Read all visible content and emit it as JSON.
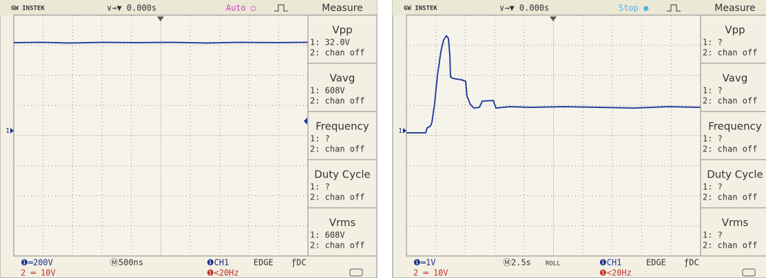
{
  "screens": [
    {
      "brand": "GW INSTEK",
      "trigger": "∨→▼ 0.000s",
      "status": "Auto ○",
      "measure_title": "Measure",
      "marker": "1",
      "measurements": [
        {
          "name": "Vpp",
          "ch1": "1: 32.0V",
          "ch2": "2: chan off"
        },
        {
          "name": "Vavg",
          "ch1": "1: 608V",
          "ch2": "2: chan off"
        },
        {
          "name": "Frequency",
          "ch1": "1:  ?",
          "ch2": "2: chan off"
        },
        {
          "name": "Duty Cycle",
          "ch1": "1:  ?",
          "ch2": "2: chan off"
        },
        {
          "name": "Vrms",
          "ch1": "1: 608V",
          "ch2": "2: chan off"
        }
      ],
      "footer": {
        "ch1_scale": "❶═200V",
        "timebase": "Ⓜ500ns",
        "trigger_source": "❶CH1",
        "trigger_type": "EDGE",
        "coupling": "ƒDC",
        "ch2_scale": "2 ═ 10V",
        "filter": "❶<20Hz"
      }
    },
    {
      "brand": "GW INSTEK",
      "trigger": "∨→▼ 0.000s",
      "status": "Stop ●",
      "measure_title": "Measure",
      "marker": "1",
      "measurements": [
        {
          "name": "Vpp",
          "ch1": "1:  ?",
          "ch2": "2: chan off"
        },
        {
          "name": "Vavg",
          "ch1": "1:  ?",
          "ch2": "2: chan off"
        },
        {
          "name": "Frequency",
          "ch1": "1:  ?",
          "ch2": "2: chan off"
        },
        {
          "name": "Duty Cycle",
          "ch1": "1:  ?",
          "ch2": "2: chan off"
        },
        {
          "name": "Vrms",
          "ch1": "1:  ?",
          "ch2": "2: chan off"
        }
      ],
      "footer": {
        "ch1_scale": "❶═1V",
        "timebase": "Ⓜ2.5s",
        "mode": "ROLL",
        "trigger_source": "❶CH1",
        "trigger_type": "EDGE",
        "coupling": "ƒDC",
        "ch2_scale": "2 ═ 10V",
        "filter": "❶<20Hz"
      }
    }
  ]
}
